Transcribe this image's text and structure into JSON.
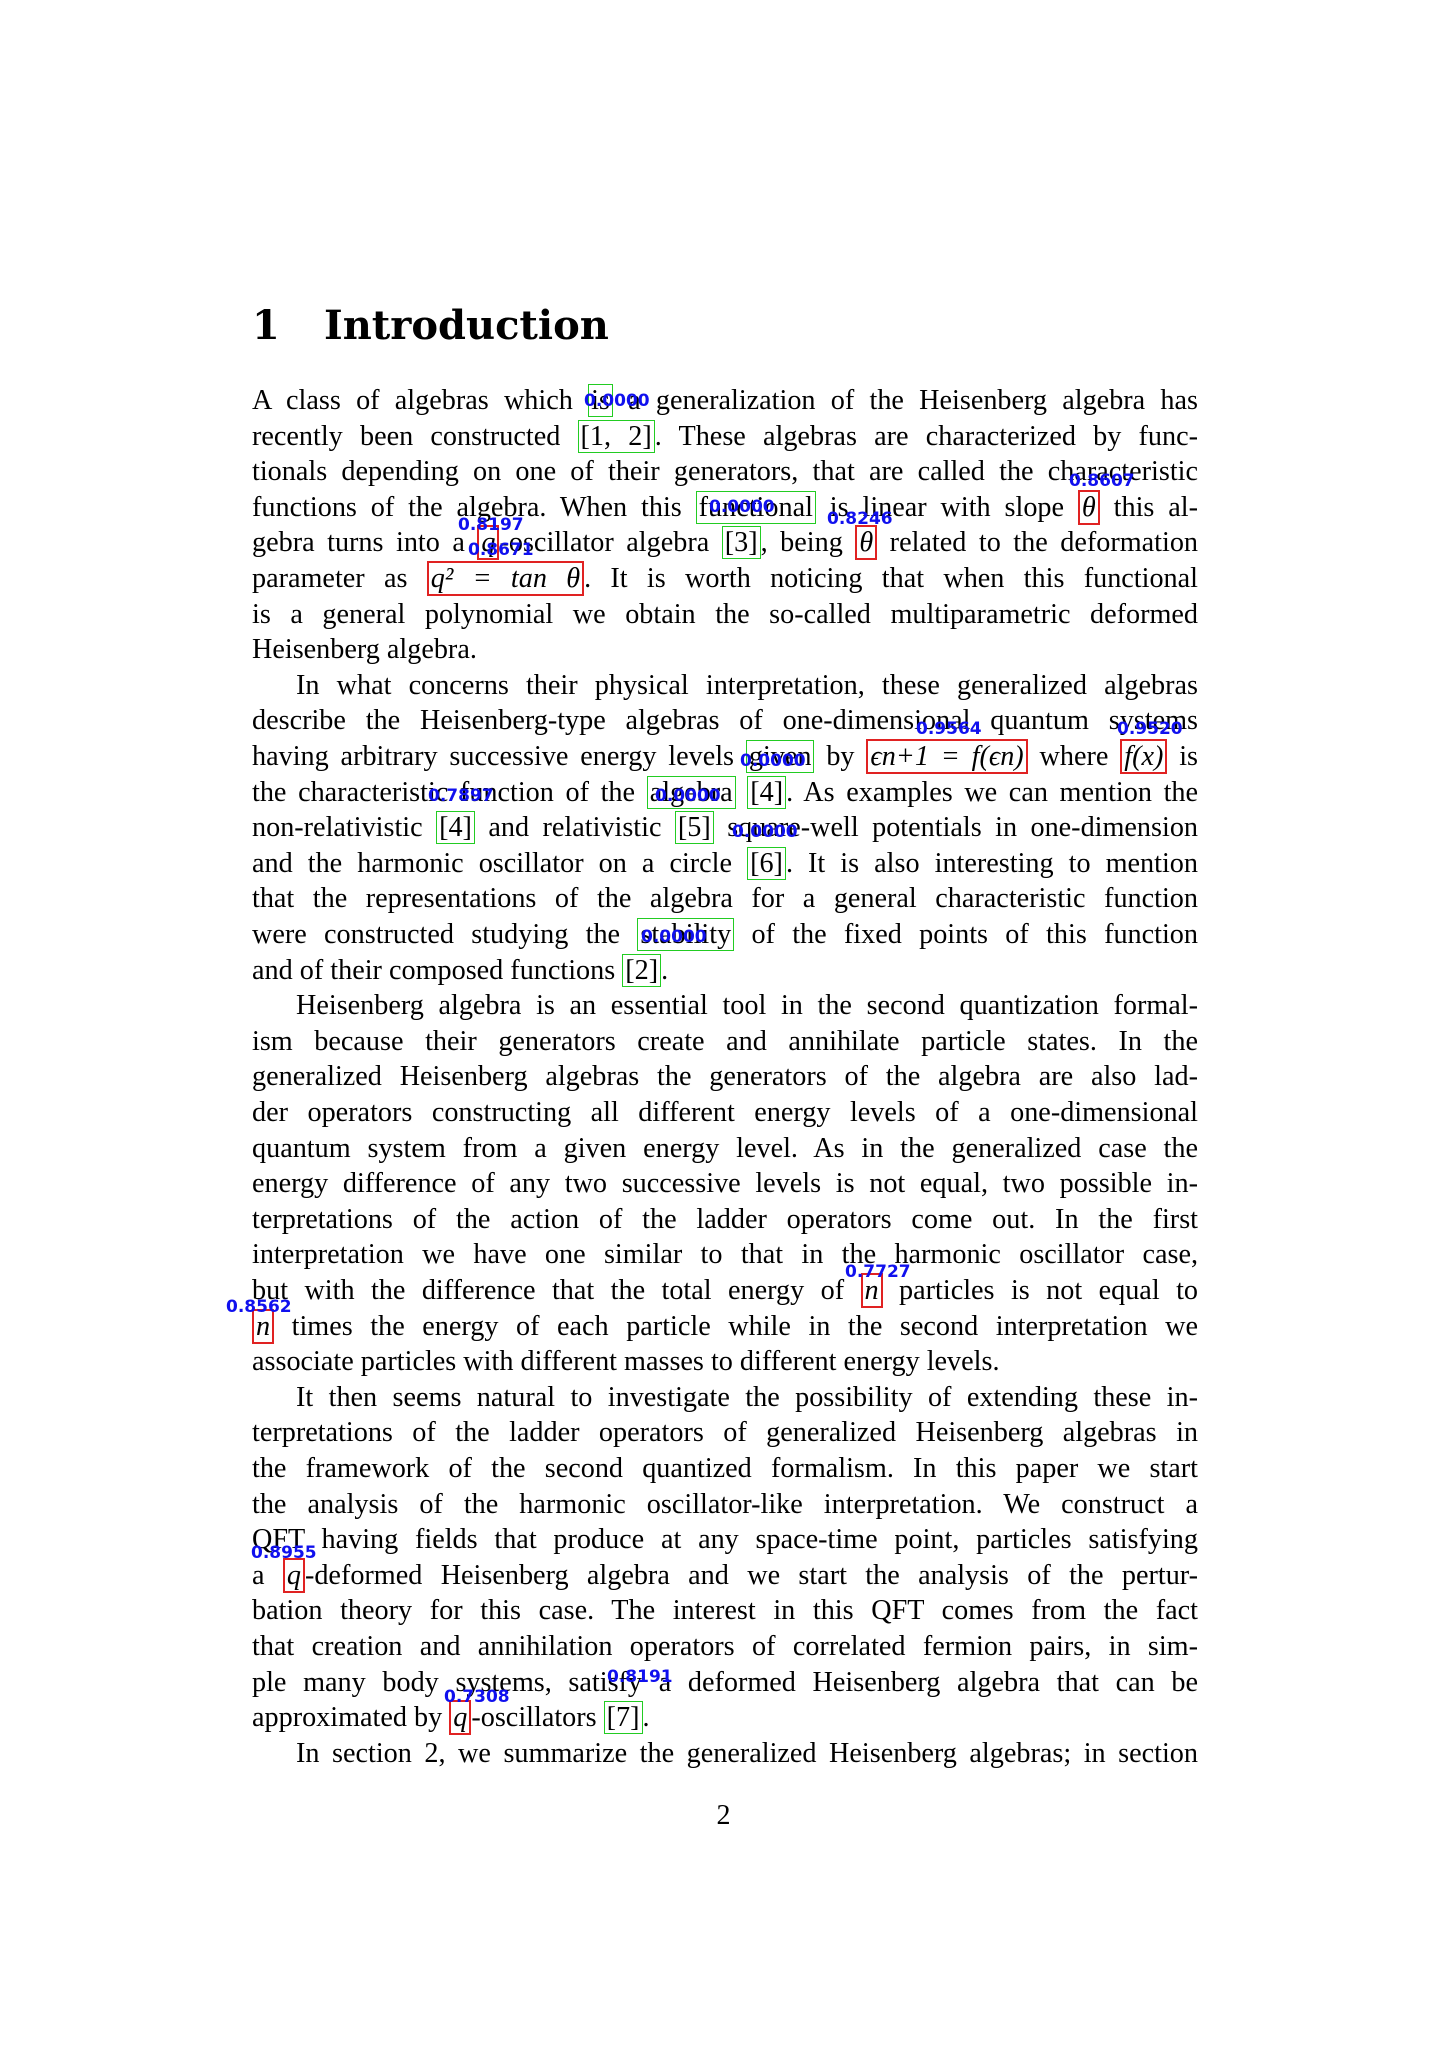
{
  "section": {
    "number": "1",
    "title": "Introduction"
  },
  "lines": [
    {
      "segments": [
        {
          "t": "A class of algebras which "
        },
        {
          "t": "is",
          "cls": "gbox"
        },
        {
          "t": " a generalization of the Heisenberg algebra has"
        }
      ]
    },
    {
      "segments": [
        {
          "t": "recently been constructed "
        },
        {
          "t": "[1, 2]",
          "cls": "gbox"
        },
        {
          "t": ". These algebras are characterized by func-"
        }
      ]
    },
    {
      "segments": [
        {
          "t": "tionals depending on one of their generators, that are called the characteristic"
        }
      ]
    },
    {
      "segments": [
        {
          "t": "functions of the algebra. When this "
        },
        {
          "t": "functional",
          "cls": "gbox"
        },
        {
          "t": " is linear with slope "
        },
        {
          "t": "θ",
          "cls": "rbox m"
        },
        {
          "t": " this al-"
        }
      ]
    },
    {
      "segments": [
        {
          "t": "gebra turns into a "
        },
        {
          "t": "q",
          "cls": "rbox m"
        },
        {
          "t": "-oscillator algebra "
        },
        {
          "t": "[3]",
          "cls": "gbox"
        },
        {
          "t": ", being "
        },
        {
          "t": "θ",
          "cls": "rbox m"
        },
        {
          "t": " related to the deformation"
        }
      ]
    },
    {
      "segments": [
        {
          "t": "parameter as "
        },
        {
          "t": "q² = tan θ",
          "cls": "rbox m"
        },
        {
          "t": ". It is worth noticing that when this functional"
        }
      ]
    },
    {
      "segments": [
        {
          "t": "is a general polynomial we obtain the so-called multiparametric deformed"
        }
      ]
    },
    {
      "segments": [
        {
          "t": "Heisenberg algebra."
        }
      ],
      "last": true
    },
    {
      "segments": [
        {
          "t": "In what concerns their physical interpretation, these generalized algebras"
        }
      ],
      "indent": true
    },
    {
      "segments": [
        {
          "t": "describe the Heisenberg-type algebras of one-dimensional quantum systems"
        }
      ]
    },
    {
      "segments": [
        {
          "t": "having arbitrary successive energy levels "
        },
        {
          "t": "given",
          "cls": "gbox"
        },
        {
          "t": " by "
        },
        {
          "t": "ϵn+1 = f(ϵn)",
          "cls": "rbox m"
        },
        {
          "t": " where "
        },
        {
          "t": "f(x)",
          "cls": "rbox m"
        },
        {
          "t": " is"
        }
      ]
    },
    {
      "segments": [
        {
          "t": "the characteristic function of the "
        },
        {
          "t": "algebra",
          "cls": "gbox"
        },
        {
          "t": " "
        },
        {
          "t": "[4]",
          "cls": "gbox"
        },
        {
          "t": ". As examples we can mention the"
        }
      ]
    },
    {
      "segments": [
        {
          "t": "non-relativistic "
        },
        {
          "t": "[4]",
          "cls": "gbox"
        },
        {
          "t": " and relativistic "
        },
        {
          "t": "[5]",
          "cls": "gbox"
        },
        {
          "t": " square-well potentials in one-dimension"
        }
      ]
    },
    {
      "segments": [
        {
          "t": "and the harmonic oscillator on a circle "
        },
        {
          "t": "[6]",
          "cls": "gbox"
        },
        {
          "t": ". It is also interesting to mention"
        }
      ]
    },
    {
      "segments": [
        {
          "t": "that the representations of the algebra for a general characteristic function"
        }
      ]
    },
    {
      "segments": [
        {
          "t": "were constructed studying the "
        },
        {
          "t": "stability",
          "cls": "gbox"
        },
        {
          "t": " of the fixed points of this function"
        }
      ]
    },
    {
      "segments": [
        {
          "t": "and of their composed functions "
        },
        {
          "t": "[2]",
          "cls": "gbox"
        },
        {
          "t": "."
        }
      ],
      "last": true
    },
    {
      "segments": [
        {
          "t": "Heisenberg algebra is an essential tool in the second quantization formal-"
        }
      ],
      "indent": true
    },
    {
      "segments": [
        {
          "t": "ism because their generators create and annihilate particle states. In the"
        }
      ]
    },
    {
      "segments": [
        {
          "t": "generalized Heisenberg algebras the generators of the algebra are also lad-"
        }
      ]
    },
    {
      "segments": [
        {
          "t": "der operators constructing all different energy levels of a one-dimensional"
        }
      ]
    },
    {
      "segments": [
        {
          "t": "quantum system from a given energy level. As in the generalized case the"
        }
      ]
    },
    {
      "segments": [
        {
          "t": "energy difference of any two successive levels is not equal, two possible in-"
        }
      ]
    },
    {
      "segments": [
        {
          "t": "terpretations of the action of the ladder operators come out. In the first"
        }
      ]
    },
    {
      "segments": [
        {
          "t": "interpretation we have one similar to that in the harmonic oscillator case,"
        }
      ]
    },
    {
      "segments": [
        {
          "t": "but with the difference that the total energy of "
        },
        {
          "t": "n",
          "cls": "rbox m"
        },
        {
          "t": " particles is not equal to"
        }
      ]
    },
    {
      "segments": [
        {
          "t": "n",
          "cls": "rbox m"
        },
        {
          "t": " times the energy of each particle while in the second interpretation we"
        }
      ]
    },
    {
      "segments": [
        {
          "t": "associate particles with different masses to different energy levels."
        }
      ],
      "last": true
    },
    {
      "segments": [
        {
          "t": "It then seems natural to investigate the possibility of extending these in-"
        }
      ],
      "indent": true
    },
    {
      "segments": [
        {
          "t": "terpretations of the ladder operators of generalized Heisenberg algebras in"
        }
      ]
    },
    {
      "segments": [
        {
          "t": "the framework of the second quantized formalism. In this paper we start"
        }
      ]
    },
    {
      "segments": [
        {
          "t": "the analysis of the harmonic oscillator-like interpretation. We construct a"
        }
      ]
    },
    {
      "segments": [
        {
          "t": "QFT having fields that produce at any space-time point, particles satisfying"
        }
      ]
    },
    {
      "segments": [
        {
          "t": "a "
        },
        {
          "t": "q",
          "cls": "rbox m"
        },
        {
          "t": "-deformed Heisenberg algebra and we start the analysis of the pertur-"
        }
      ]
    },
    {
      "segments": [
        {
          "t": "bation theory for this case. The interest in this QFT comes from the fact"
        }
      ]
    },
    {
      "segments": [
        {
          "t": "that creation and annihilation operators of correlated fermion pairs, in sim-"
        }
      ]
    },
    {
      "segments": [
        {
          "t": "ple many body systems, satisfy a deformed Heisenberg algebra that can be"
        }
      ]
    },
    {
      "segments": [
        {
          "t": "approximated by "
        },
        {
          "t": "q",
          "cls": "rbox m"
        },
        {
          "t": "-oscillators "
        },
        {
          "t": "[7]",
          "cls": "gbox"
        },
        {
          "t": "."
        }
      ],
      "last": true
    },
    {
      "segments": [
        {
          "t": "In section 2, we summarize the generalized Heisenberg algebras; in section"
        }
      ],
      "indent": true
    }
  ],
  "scores": [
    "0.0000",
    "0.8607",
    "0.0000",
    "0.8246",
    "0.8197",
    "0.8671",
    "0.9564",
    "0.9520",
    "0.0000",
    "0.7897",
    "0.0000",
    "0.0000",
    "0.0000",
    "0.7727",
    "0.8562",
    "0.8955",
    "0.8191",
    "0.7308"
  ],
  "page_number": "2"
}
